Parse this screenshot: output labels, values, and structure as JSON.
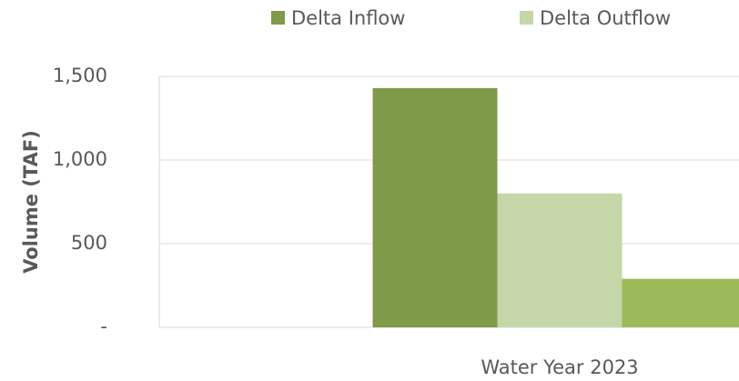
{
  "chart_data": {
    "type": "bar",
    "y_axis_label": "Volume (TAF)",
    "categories": [
      "Water Year 2023"
    ],
    "series": [
      {
        "name": "Delta Inflow",
        "color": "#7f9a48",
        "values": [
          1430
        ]
      },
      {
        "name": "Delta Outflow",
        "color": "#c5d6a8",
        "values": [
          800
        ]
      },
      {
        "name": null,
        "color": "#9bbb59",
        "values": [
          290
        ]
      }
    ],
    "ylim": [
      0,
      1500
    ],
    "yticks": [
      {
        "value": 0,
        "label": "-"
      },
      500,
      {
        "value": 1000,
        "label": "1,000"
      },
      {
        "value": 1500,
        "label": "1,500"
      }
    ],
    "grid": true
  }
}
